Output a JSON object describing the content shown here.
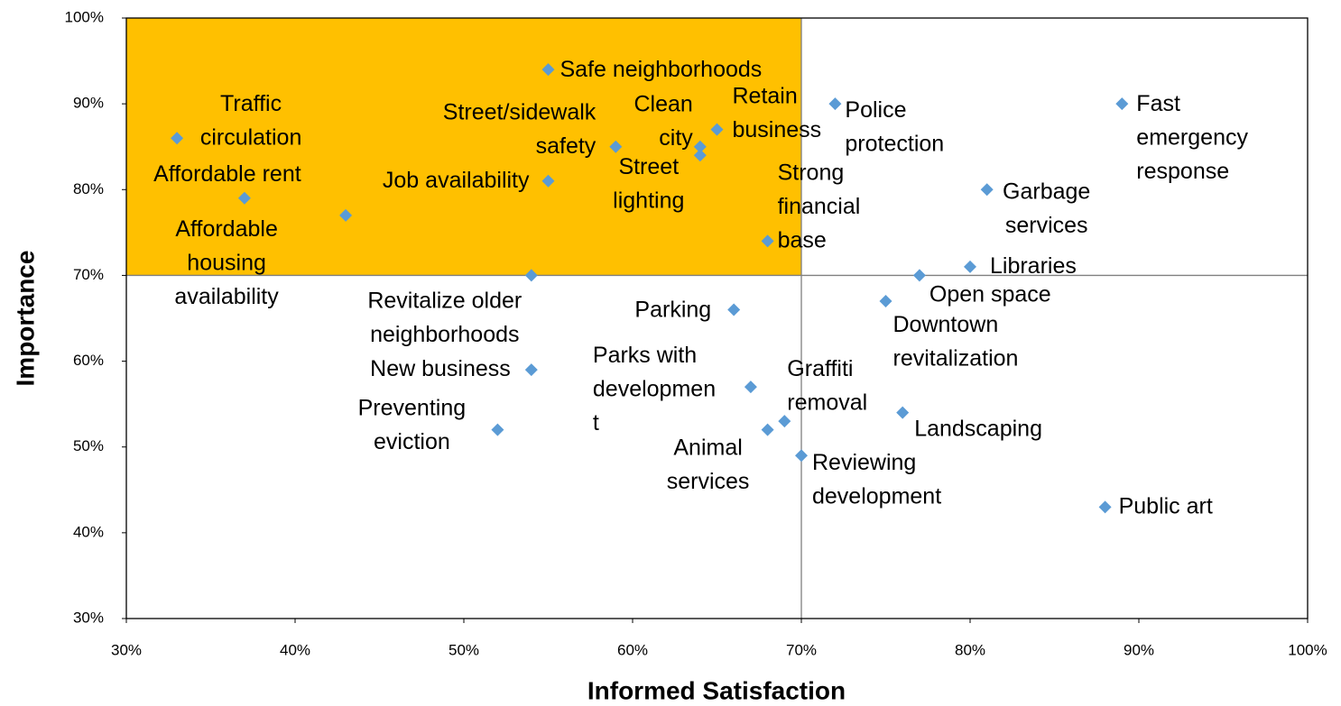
{
  "chart_data": {
    "type": "scatter",
    "x_label": "Informed Satisfaction",
    "y_label": "Importance",
    "point_labels": [
      "Traffic\ncirculation",
      "Affordable rent",
      "Affordable\nhousing\navailability",
      "Safe neighborhoods",
      "Street/sidewalk\nsafety",
      "Job availability",
      "Clean\ncity",
      "Street\nlighting",
      "Retain\nbusiness",
      "Strong\nfinancial\nbase",
      "Revitalize older\nneighborhoods",
      "Police\nprotection",
      "Fast\nemergency\nresponse",
      "Garbage\nservices",
      "Libraries",
      "Open space",
      "Downtown\nrevitalization",
      "Parking",
      "New business",
      "Parks with\ndevelopmen\nt",
      "Graffiti\nremoval",
      "Animal\nservices",
      "Preventing\neviction",
      "Landscaping",
      "Reviewing\ndevelopment",
      "Public art"
    ],
    "x": [
      33,
      37,
      43,
      55,
      59,
      55,
      64,
      64,
      65,
      68,
      54,
      72,
      89,
      81,
      80,
      77,
      75,
      66,
      54,
      67,
      69,
      68,
      52,
      76,
      70,
      88
    ],
    "values": [
      86,
      79,
      77,
      94,
      85,
      81,
      85,
      84,
      87,
      74,
      70,
      90,
      90,
      80,
      71,
      70,
      67,
      66,
      59,
      57,
      53,
      52,
      52,
      54,
      49,
      43
    ],
    "color": "#5b9bd5",
    "xlim": [
      30,
      100
    ],
    "ylim": [
      30,
      100
    ],
    "xticks": [
      {
        "value": 30,
        "label": "30%"
      },
      {
        "value": 40,
        "label": "40%"
      },
      {
        "value": 50,
        "label": "50%"
      },
      {
        "value": 60,
        "label": "60%"
      },
      {
        "value": 70,
        "label": "70%"
      },
      {
        "value": 80,
        "label": "80%"
      },
      {
        "value": 90,
        "label": "90%"
      },
      {
        "value": 100,
        "label": "100%"
      }
    ],
    "yticks": [
      {
        "value": 30,
        "label": "30%"
      },
      {
        "value": 40,
        "label": "40%"
      },
      {
        "value": 50,
        "label": "50%"
      },
      {
        "value": 60,
        "label": "60%"
      },
      {
        "value": 70,
        "label": "70%"
      },
      {
        "value": 80,
        "label": "80%"
      },
      {
        "value": 90,
        "label": "90%"
      },
      {
        "value": 100,
        "label": "100%"
      }
    ],
    "quadrant_divider": {
      "x": 70,
      "y": 70
    },
    "highlight_color": "#ffc000",
    "grid": false
  }
}
